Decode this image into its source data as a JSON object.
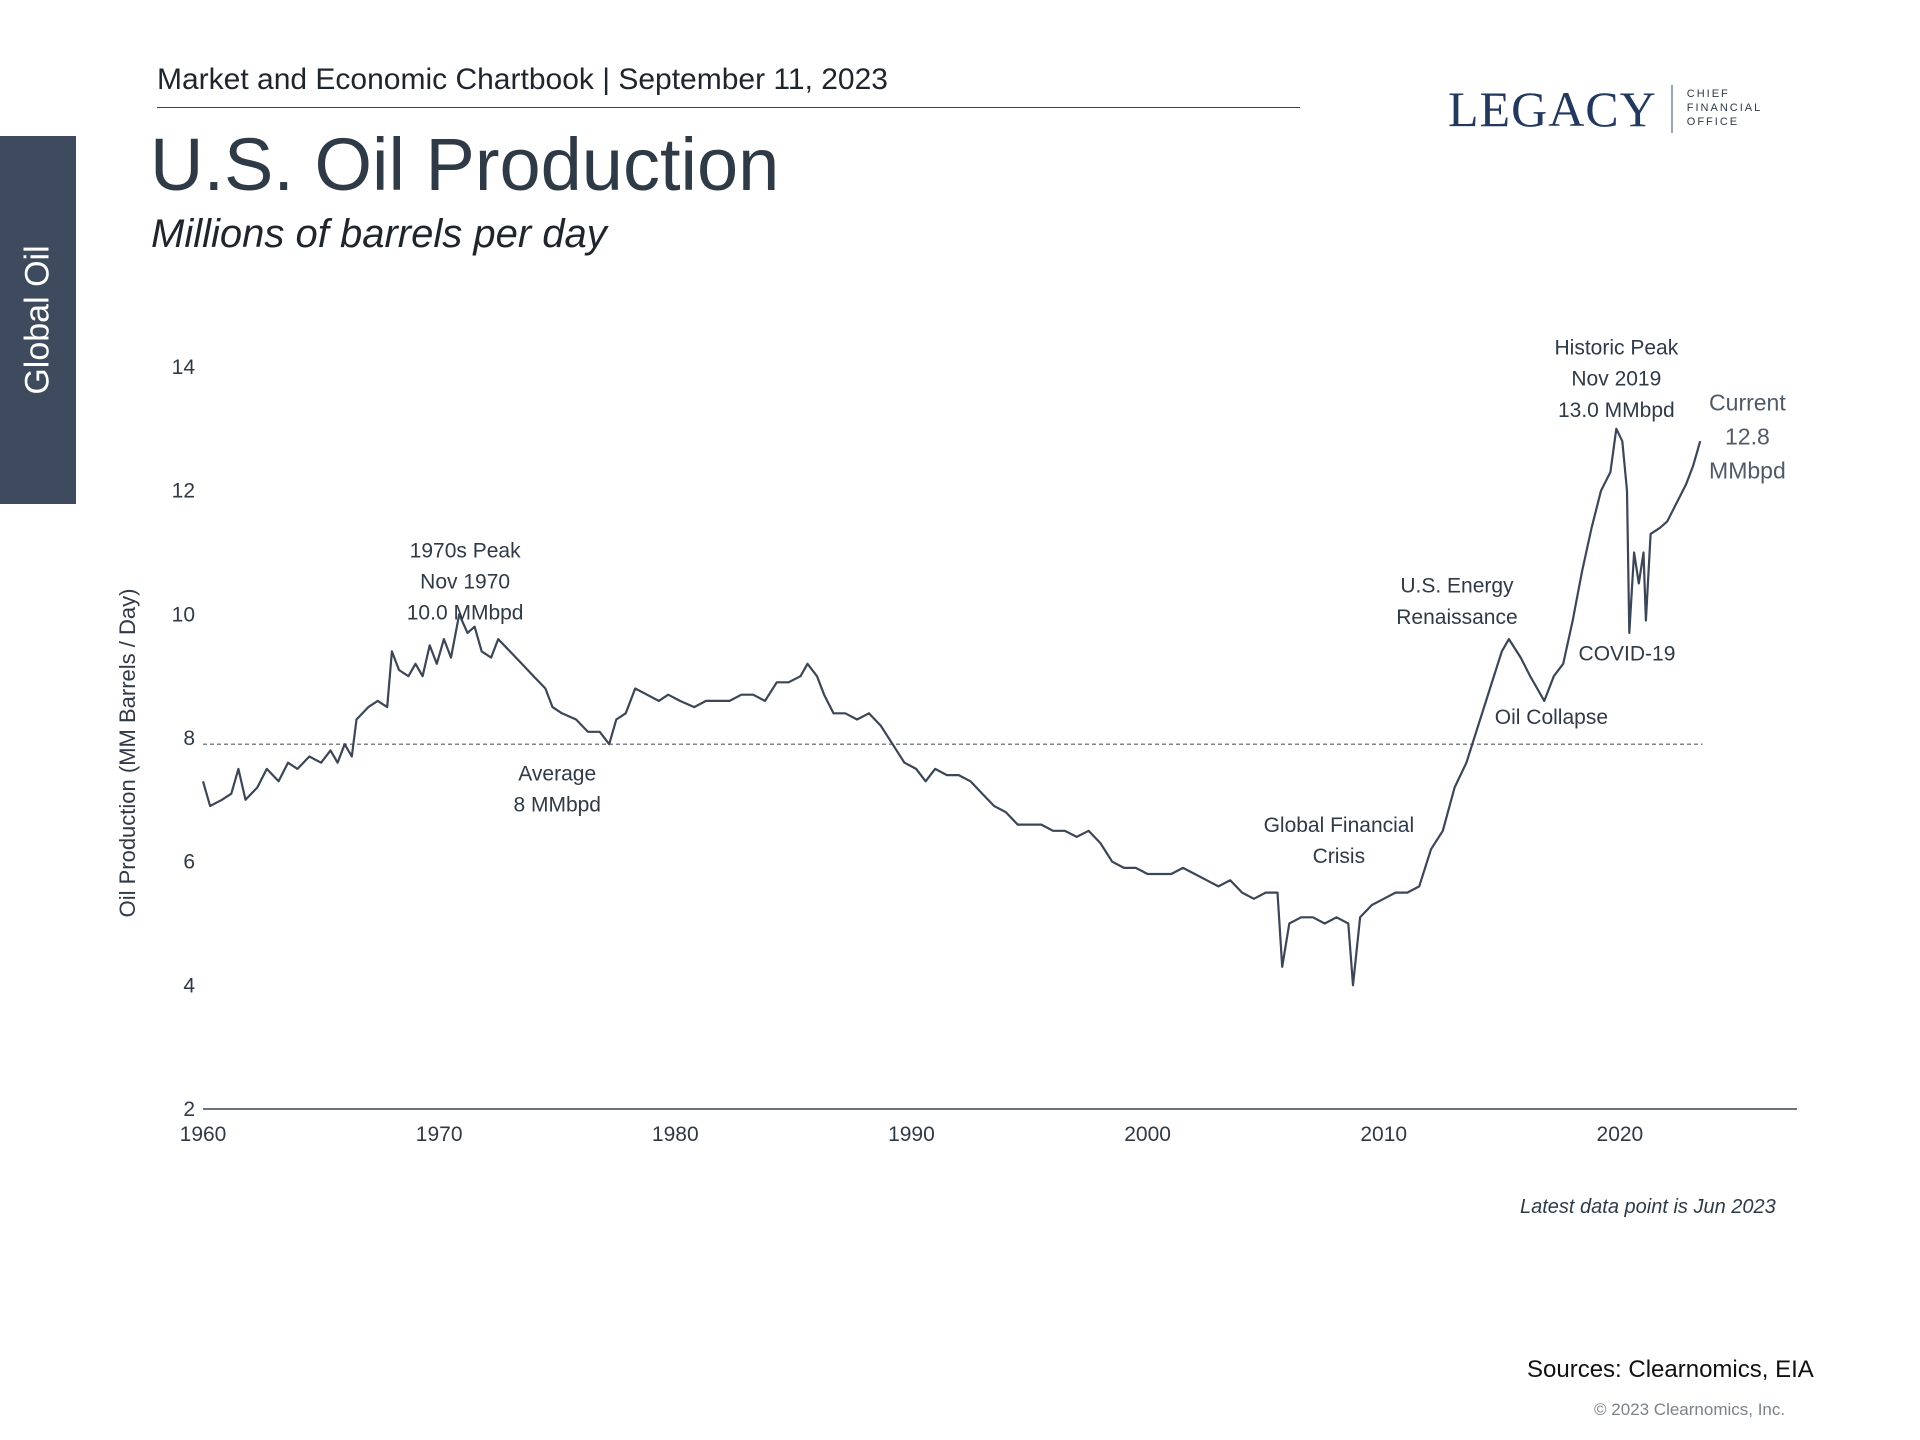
{
  "header": {
    "chartbook_line": "Market and Economic Chartbook | September 11, 2023"
  },
  "logo": {
    "wordmark": "LEGACY",
    "sub_line_1": "CHIEF",
    "sub_line_2": "FINANCIAL",
    "sub_line_3": "OFFICE"
  },
  "side_tab": {
    "label": "Global Oil"
  },
  "page": {
    "title": "U.S. Oil Production",
    "subtitle": "Millions of barrels per day"
  },
  "colors": {
    "line": "#3b4656",
    "axis": "#3a4450",
    "side_tab": "#3e4b5e",
    "logo": "#23385e"
  },
  "chart_data": {
    "type": "line",
    "title": "U.S. Oil Production",
    "ylabel": "Oil Production (MM Barrels / Day)",
    "xlabel": "",
    "xlim": [
      1960,
      2027.5
    ],
    "ylim": [
      2,
      14
    ],
    "yticks": [
      2,
      4,
      6,
      8,
      10,
      12,
      14
    ],
    "xticks": [
      1960,
      1970,
      1980,
      1990,
      2000,
      2010,
      2020
    ],
    "average": {
      "value": 7.9,
      "from": 1960,
      "to": 2023.5
    },
    "series": [
      {
        "name": "U.S. Oil Production",
        "points": [
          [
            1960.0,
            7.3
          ],
          [
            1960.3,
            6.9
          ],
          [
            1960.8,
            7.0
          ],
          [
            1961.2,
            7.1
          ],
          [
            1961.5,
            7.5
          ],
          [
            1961.8,
            7.0
          ],
          [
            1962.3,
            7.2
          ],
          [
            1962.7,
            7.5
          ],
          [
            1963.2,
            7.3
          ],
          [
            1963.6,
            7.6
          ],
          [
            1964.0,
            7.5
          ],
          [
            1964.5,
            7.7
          ],
          [
            1965.0,
            7.6
          ],
          [
            1965.4,
            7.8
          ],
          [
            1965.7,
            7.6
          ],
          [
            1966.0,
            7.9
          ],
          [
            1966.3,
            7.7
          ],
          [
            1966.5,
            8.3
          ],
          [
            1967.0,
            8.5
          ],
          [
            1967.4,
            8.6
          ],
          [
            1967.8,
            8.5
          ],
          [
            1968.0,
            9.4
          ],
          [
            1968.3,
            9.1
          ],
          [
            1968.7,
            9.0
          ],
          [
            1969.0,
            9.2
          ],
          [
            1969.3,
            9.0
          ],
          [
            1969.6,
            9.5
          ],
          [
            1969.9,
            9.2
          ],
          [
            1970.2,
            9.6
          ],
          [
            1970.5,
            9.3
          ],
          [
            1970.85,
            10.0
          ],
          [
            1971.2,
            9.7
          ],
          [
            1971.5,
            9.8
          ],
          [
            1971.8,
            9.4
          ],
          [
            1972.2,
            9.3
          ],
          [
            1972.5,
            9.6
          ],
          [
            1973.0,
            9.4
          ],
          [
            1973.5,
            9.2
          ],
          [
            1974.0,
            9.0
          ],
          [
            1974.5,
            8.8
          ],
          [
            1974.8,
            8.5
          ],
          [
            1975.2,
            8.4
          ],
          [
            1975.8,
            8.3
          ],
          [
            1976.3,
            8.1
          ],
          [
            1976.8,
            8.1
          ],
          [
            1977.2,
            7.9
          ],
          [
            1977.5,
            8.3
          ],
          [
            1977.9,
            8.4
          ],
          [
            1978.3,
            8.8
          ],
          [
            1978.8,
            8.7
          ],
          [
            1979.3,
            8.6
          ],
          [
            1979.7,
            8.7
          ],
          [
            1980.2,
            8.6
          ],
          [
            1980.8,
            8.5
          ],
          [
            1981.3,
            8.6
          ],
          [
            1981.8,
            8.6
          ],
          [
            1982.3,
            8.6
          ],
          [
            1982.8,
            8.7
          ],
          [
            1983.3,
            8.7
          ],
          [
            1983.8,
            8.6
          ],
          [
            1984.3,
            8.9
          ],
          [
            1984.8,
            8.9
          ],
          [
            1985.3,
            9.0
          ],
          [
            1985.6,
            9.2
          ],
          [
            1986.0,
            9.0
          ],
          [
            1986.3,
            8.7
          ],
          [
            1986.7,
            8.4
          ],
          [
            1987.2,
            8.4
          ],
          [
            1987.7,
            8.3
          ],
          [
            1988.2,
            8.4
          ],
          [
            1988.7,
            8.2
          ],
          [
            1989.2,
            7.9
          ],
          [
            1989.7,
            7.6
          ],
          [
            1990.2,
            7.5
          ],
          [
            1990.6,
            7.3
          ],
          [
            1991.0,
            7.5
          ],
          [
            1991.5,
            7.4
          ],
          [
            1992.0,
            7.4
          ],
          [
            1992.5,
            7.3
          ],
          [
            1993.0,
            7.1
          ],
          [
            1993.5,
            6.9
          ],
          [
            1994.0,
            6.8
          ],
          [
            1994.5,
            6.6
          ],
          [
            1995.0,
            6.6
          ],
          [
            1995.5,
            6.6
          ],
          [
            1996.0,
            6.5
          ],
          [
            1996.5,
            6.5
          ],
          [
            1997.0,
            6.4
          ],
          [
            1997.5,
            6.5
          ],
          [
            1998.0,
            6.3
          ],
          [
            1998.5,
            6.0
          ],
          [
            1999.0,
            5.9
          ],
          [
            1999.5,
            5.9
          ],
          [
            2000.0,
            5.8
          ],
          [
            2000.5,
            5.8
          ],
          [
            2001.0,
            5.8
          ],
          [
            2001.5,
            5.9
          ],
          [
            2002.0,
            5.8
          ],
          [
            2002.5,
            5.7
          ],
          [
            2003.0,
            5.6
          ],
          [
            2003.5,
            5.7
          ],
          [
            2004.0,
            5.5
          ],
          [
            2004.5,
            5.4
          ],
          [
            2005.0,
            5.5
          ],
          [
            2005.5,
            5.5
          ],
          [
            2005.7,
            4.3
          ],
          [
            2006.0,
            5.0
          ],
          [
            2006.5,
            5.1
          ],
          [
            2007.0,
            5.1
          ],
          [
            2007.5,
            5.0
          ],
          [
            2008.0,
            5.1
          ],
          [
            2008.5,
            5.0
          ],
          [
            2008.7,
            4.0
          ],
          [
            2009.0,
            5.1
          ],
          [
            2009.5,
            5.3
          ],
          [
            2010.0,
            5.4
          ],
          [
            2010.5,
            5.5
          ],
          [
            2011.0,
            5.5
          ],
          [
            2011.5,
            5.6
          ],
          [
            2012.0,
            6.2
          ],
          [
            2012.5,
            6.5
          ],
          [
            2013.0,
            7.2
          ],
          [
            2013.5,
            7.6
          ],
          [
            2014.0,
            8.2
          ],
          [
            2014.5,
            8.8
          ],
          [
            2015.0,
            9.4
          ],
          [
            2015.3,
            9.6
          ],
          [
            2015.8,
            9.3
          ],
          [
            2016.2,
            9.0
          ],
          [
            2016.5,
            8.8
          ],
          [
            2016.8,
            8.6
          ],
          [
            2017.2,
            9.0
          ],
          [
            2017.6,
            9.2
          ],
          [
            2018.0,
            9.9
          ],
          [
            2018.4,
            10.7
          ],
          [
            2018.8,
            11.4
          ],
          [
            2019.2,
            12.0
          ],
          [
            2019.6,
            12.3
          ],
          [
            2019.85,
            13.0
          ],
          [
            2020.1,
            12.8
          ],
          [
            2020.3,
            12.0
          ],
          [
            2020.4,
            9.7
          ],
          [
            2020.6,
            11.0
          ],
          [
            2020.8,
            10.5
          ],
          [
            2021.0,
            11.0
          ],
          [
            2021.1,
            9.9
          ],
          [
            2021.3,
            11.3
          ],
          [
            2021.7,
            11.4
          ],
          [
            2022.0,
            11.5
          ],
          [
            2022.4,
            11.8
          ],
          [
            2022.8,
            12.1
          ],
          [
            2023.1,
            12.4
          ],
          [
            2023.4,
            12.8
          ]
        ]
      }
    ],
    "annotations": [
      {
        "id": "peak_1970",
        "lines": [
          "1970s Peak",
          "Nov 1970",
          "10.0 MMbpd"
        ]
      },
      {
        "id": "average",
        "lines": [
          "Average",
          "8 MMbpd"
        ]
      },
      {
        "id": "gfc",
        "lines": [
          "Global Financial",
          "Crisis"
        ]
      },
      {
        "id": "energy_renaissance",
        "lines": [
          "U.S. Energy",
          "Renaissance"
        ]
      },
      {
        "id": "oil_collapse",
        "lines": [
          "Oil Collapse"
        ]
      },
      {
        "id": "covid",
        "lines": [
          "COVID-19"
        ]
      },
      {
        "id": "historic_peak",
        "lines": [
          "Historic Peak",
          "Nov 2019",
          "13.0 MMbpd"
        ]
      },
      {
        "id": "current",
        "lines": [
          "Current",
          "12.8",
          "MMbpd"
        ]
      }
    ]
  },
  "footer": {
    "latest_note": "Latest data point is Jun 2023",
    "sources": "Sources: Clearnomics, EIA",
    "copyright": "© 2023 Clearnomics, Inc."
  }
}
